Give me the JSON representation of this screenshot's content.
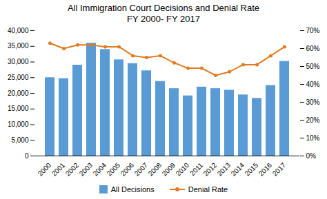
{
  "chart_data": {
    "type": "bar",
    "title": "All Immigration Court Decisions and Denial Rate\nFY 2000- FY 2017",
    "categories": [
      "2000",
      "2001",
      "2002",
      "2003",
      "2004",
      "2005",
      "2006",
      "2007",
      "2008",
      "2009",
      "2010",
      "2011",
      "2012",
      "2013",
      "2014",
      "2015",
      "2016",
      "2017"
    ],
    "series": [
      {
        "name": "All Decisions",
        "type": "bar",
        "color": "#5b9bd5",
        "values": [
          25000,
          24700,
          29000,
          36000,
          34000,
          30700,
          29500,
          27200,
          23800,
          21500,
          19200,
          22000,
          21500,
          21000,
          19500,
          18400,
          22500,
          30200
        ]
      },
      {
        "name": "Denial Rate",
        "type": "line",
        "axis": "y2",
        "color": "#e07b22",
        "marker": "circle",
        "values": [
          0.63,
          0.6,
          0.62,
          0.62,
          0.61,
          0.61,
          0.56,
          0.55,
          0.56,
          0.52,
          0.49,
          0.49,
          0.45,
          0.47,
          0.51,
          0.51,
          0.56,
          0.61
        ]
      }
    ],
    "ylim": [
      0,
      40000
    ],
    "yticks": [
      0,
      {
        "value": 5000,
        "label": "5,000"
      },
      {
        "value": 10000,
        "label": "10,000"
      },
      {
        "value": 15000,
        "label": "15,000"
      },
      {
        "value": 20000,
        "label": "20,000"
      },
      {
        "value": 25000,
        "label": "25,000"
      },
      {
        "value": 30000,
        "label": "30,000"
      },
      {
        "value": 35000,
        "label": "35,000"
      },
      {
        "value": 40000,
        "label": "40,000"
      }
    ],
    "y2lim": [
      0,
      0.7
    ],
    "y2ticks": [
      {
        "value": 0.0,
        "label": "0%"
      },
      {
        "value": 0.1,
        "label": "10%"
      },
      {
        "value": 0.2,
        "label": "20%"
      },
      {
        "value": 0.3,
        "label": "30%"
      },
      {
        "value": 0.4,
        "label": "40%"
      },
      {
        "value": 0.5,
        "label": "50%"
      },
      {
        "value": 0.6,
        "label": "60%"
      },
      {
        "value": 0.7,
        "label": "70%"
      }
    ],
    "legend": "bottom",
    "grid": false
  }
}
